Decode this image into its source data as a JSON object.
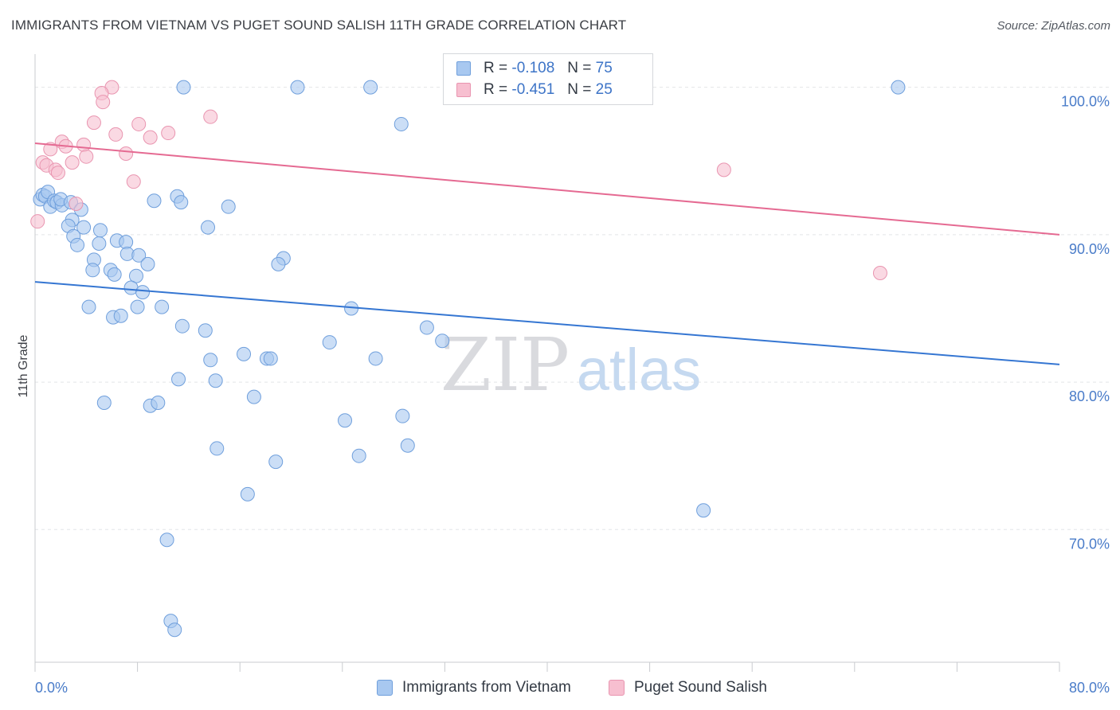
{
  "title": "IMMIGRANTS FROM VIETNAM VS PUGET SOUND SALISH 11TH GRADE CORRELATION CHART",
  "source": "Source: ZipAtlas.com",
  "watermark": {
    "zip": "ZIP",
    "atlas": "atlas"
  },
  "legend": {
    "rows": [
      {
        "r_label": "R =",
        "r_value": "-0.108",
        "n_label": "N =",
        "n_value": "75",
        "color": "#a8c8f0",
        "stroke": "#6f9fdc"
      },
      {
        "r_label": "R =",
        "r_value": "-0.451",
        "n_label": "N =",
        "n_value": "25",
        "color": "#f7bfd0",
        "stroke": "#e995b0"
      }
    ]
  },
  "bottom_legend": [
    {
      "label": "Immigrants from Vietnam",
      "color": "#a8c8f0",
      "stroke": "#6f9fdc"
    },
    {
      "label": "Puget Sound Salish",
      "color": "#f7bfd0",
      "stroke": "#e995b0"
    }
  ],
  "chart_data": {
    "type": "scatter",
    "title": "IMMIGRANTS FROM VIETNAM VS PUGET SOUND SALISH 11TH GRADE CORRELATION CHART",
    "xlabel": "",
    "ylabel": "11th Grade",
    "xlim": [
      0,
      80
    ],
    "ylim": [
      61,
      101.6
    ],
    "x_tick_labels": [
      "0.0%",
      "80.0%"
    ],
    "y_ticks": [
      {
        "value": 100,
        "label": "100.0%"
      },
      {
        "value": 90,
        "label": "90.0%"
      },
      {
        "value": 80,
        "label": "80.0%"
      },
      {
        "value": 70,
        "label": "70.0%"
      }
    ],
    "grid": true,
    "legend_placement": "top-center",
    "series": [
      {
        "name": "Immigrants from Vietnam",
        "color": "#a8c8f0",
        "stroke": "#6f9fdc",
        "line_color": "#3576d2",
        "trend": {
          "x": [
            0,
            80
          ],
          "y": [
            86.8,
            81.2
          ]
        },
        "points": [
          [
            0.4,
            92.4
          ],
          [
            0.6,
            92.7
          ],
          [
            0.8,
            92.6
          ],
          [
            1.0,
            92.9
          ],
          [
            1.2,
            91.9
          ],
          [
            1.5,
            92.3
          ],
          [
            1.7,
            92.2
          ],
          [
            2.1,
            92.0
          ],
          [
            2.0,
            92.4
          ],
          [
            2.8,
            92.2
          ],
          [
            3.6,
            91.7
          ],
          [
            2.9,
            91.0
          ],
          [
            2.6,
            90.6
          ],
          [
            3.0,
            89.9
          ],
          [
            3.3,
            89.3
          ],
          [
            3.8,
            90.5
          ],
          [
            4.6,
            88.3
          ],
          [
            4.5,
            87.6
          ],
          [
            5.0,
            89.4
          ],
          [
            5.1,
            90.3
          ],
          [
            5.9,
            87.6
          ],
          [
            6.2,
            87.3
          ],
          [
            6.4,
            89.6
          ],
          [
            7.1,
            89.5
          ],
          [
            7.2,
            88.7
          ],
          [
            8.1,
            88.6
          ],
          [
            7.9,
            87.2
          ],
          [
            8.8,
            88.0
          ],
          [
            7.5,
            86.4
          ],
          [
            8.4,
            86.1
          ],
          [
            4.2,
            85.1
          ],
          [
            6.1,
            84.4
          ],
          [
            6.7,
            84.5
          ],
          [
            8.0,
            85.1
          ],
          [
            9.9,
            85.1
          ],
          [
            11.5,
            83.8
          ],
          [
            13.3,
            83.5
          ],
          [
            11.1,
            92.6
          ],
          [
            11.4,
            92.2
          ],
          [
            9.3,
            92.3
          ],
          [
            13.5,
            90.5
          ],
          [
            15.1,
            91.9
          ],
          [
            11.6,
            100.0
          ],
          [
            20.5,
            100.0
          ],
          [
            26.2,
            100.0
          ],
          [
            28.6,
            97.5
          ],
          [
            67.4,
            100.0
          ],
          [
            19.4,
            88.4
          ],
          [
            19.0,
            88.0
          ],
          [
            24.7,
            85.0
          ],
          [
            13.7,
            81.5
          ],
          [
            16.3,
            81.9
          ],
          [
            18.1,
            81.6
          ],
          [
            18.4,
            81.6
          ],
          [
            11.2,
            80.2
          ],
          [
            14.1,
            80.1
          ],
          [
            23.0,
            82.7
          ],
          [
            26.6,
            81.6
          ],
          [
            30.6,
            83.7
          ],
          [
            31.8,
            82.8
          ],
          [
            17.1,
            79.0
          ],
          [
            5.4,
            78.6
          ],
          [
            9.0,
            78.4
          ],
          [
            9.6,
            78.6
          ],
          [
            24.2,
            77.4
          ],
          [
            28.7,
            77.7
          ],
          [
            14.2,
            75.5
          ],
          [
            18.8,
            74.6
          ],
          [
            25.3,
            75.0
          ],
          [
            29.1,
            75.7
          ],
          [
            16.6,
            72.4
          ],
          [
            52.2,
            71.3
          ],
          [
            10.3,
            69.3
          ],
          [
            10.6,
            63.8
          ],
          [
            10.9,
            63.2
          ]
        ]
      },
      {
        "name": "Puget Sound Salish",
        "color": "#f7bfd0",
        "stroke": "#e995b0",
        "line_color": "#e56a92",
        "trend": {
          "x": [
            0,
            80
          ],
          "y": [
            96.2,
            90.0
          ]
        },
        "points": [
          [
            6.0,
            100.0
          ],
          [
            5.2,
            99.6
          ],
          [
            5.3,
            99.0
          ],
          [
            13.7,
            98.0
          ],
          [
            4.6,
            97.6
          ],
          [
            8.1,
            97.5
          ],
          [
            6.3,
            96.8
          ],
          [
            10.4,
            96.9
          ],
          [
            9.0,
            96.6
          ],
          [
            2.1,
            96.3
          ],
          [
            2.4,
            96.0
          ],
          [
            3.8,
            96.1
          ],
          [
            1.2,
            95.8
          ],
          [
            4.0,
            95.3
          ],
          [
            7.1,
            95.5
          ],
          [
            0.6,
            94.9
          ],
          [
            0.9,
            94.7
          ],
          [
            2.9,
            94.9
          ],
          [
            1.6,
            94.4
          ],
          [
            1.8,
            94.2
          ],
          [
            7.7,
            93.6
          ],
          [
            53.8,
            94.4
          ],
          [
            3.2,
            92.1
          ],
          [
            0.2,
            90.9
          ],
          [
            66.0,
            87.4
          ]
        ]
      }
    ]
  }
}
